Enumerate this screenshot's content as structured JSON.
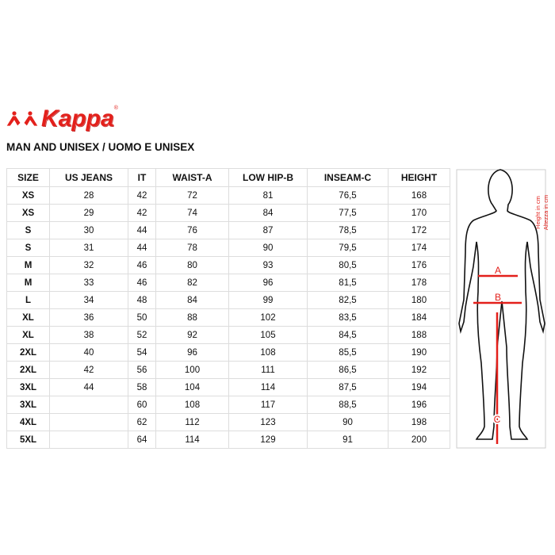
{
  "brand": "Kappa",
  "title": "MAN AND UNISEX / UOMO E UNISEX",
  "table": {
    "headers": [
      "SIZE",
      "US JEANS",
      "IT",
      "WAIST-A",
      "LOW HIP-B",
      "INSEAM-C",
      "HEIGHT"
    ],
    "rows": [
      [
        "XS",
        "28",
        "42",
        "72",
        "81",
        "76,5",
        "168"
      ],
      [
        "XS",
        "29",
        "42",
        "74",
        "84",
        "77,5",
        "170"
      ],
      [
        "S",
        "30",
        "44",
        "76",
        "87",
        "78,5",
        "172"
      ],
      [
        "S",
        "31",
        "44",
        "78",
        "90",
        "79,5",
        "174"
      ],
      [
        "M",
        "32",
        "46",
        "80",
        "93",
        "80,5",
        "176"
      ],
      [
        "M",
        "33",
        "46",
        "82",
        "96",
        "81,5",
        "178"
      ],
      [
        "L",
        "34",
        "48",
        "84",
        "99",
        "82,5",
        "180"
      ],
      [
        "XL",
        "36",
        "50",
        "88",
        "102",
        "83,5",
        "184"
      ],
      [
        "XL",
        "38",
        "52",
        "92",
        "105",
        "84,5",
        "188"
      ],
      [
        "2XL",
        "40",
        "54",
        "96",
        "108",
        "85,5",
        "190"
      ],
      [
        "2XL",
        "42",
        "56",
        "100",
        "111",
        "86,5",
        "192"
      ],
      [
        "3XL",
        "44",
        "58",
        "104",
        "114",
        "87,5",
        "194"
      ],
      [
        "3XL",
        "",
        "60",
        "108",
        "117",
        "88,5",
        "196"
      ],
      [
        "4XL",
        "",
        "62",
        "112",
        "123",
        "90",
        "198"
      ],
      [
        "5XL",
        "",
        "64",
        "114",
        "129",
        "91",
        "200"
      ]
    ]
  },
  "figure": {
    "label_a": "A",
    "label_b": "B",
    "label_c": "C",
    "height_en": "Height in cm",
    "height_it": "Altezza in cm",
    "accent": "#e3201b"
  }
}
